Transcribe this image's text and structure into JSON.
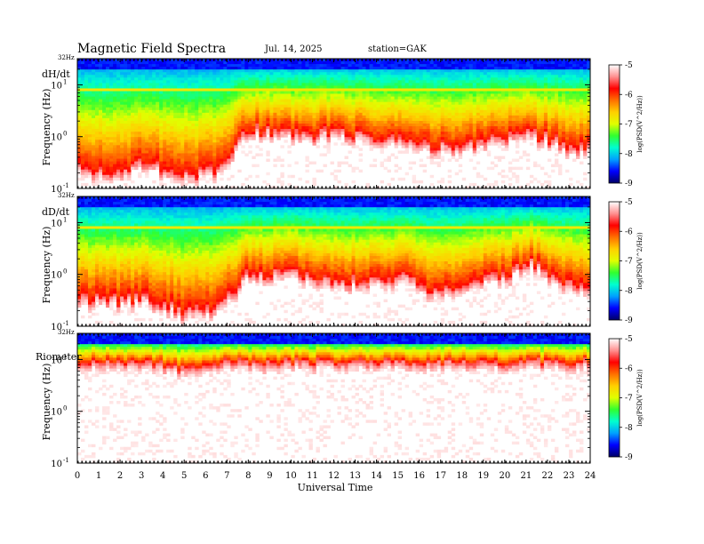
{
  "header": {
    "title": "Magnetic  Field  Spectra",
    "date": "Jul.  14,  2025",
    "station": "station=GAK"
  },
  "chart_data": {
    "type": "heatmap",
    "x_axis": {
      "label": "Universal Time",
      "range": [
        0,
        24
      ],
      "ticks": [
        "0",
        "1",
        "2",
        "3",
        "4",
        "5",
        "6",
        "7",
        "8",
        "9",
        "10",
        "11",
        "12",
        "13",
        "14",
        "15",
        "16",
        "17",
        "18",
        "19",
        "20",
        "21",
        "22",
        "23",
        "24"
      ]
    },
    "y_axis": {
      "label": "Frequency  (Hz)",
      "scale": "log",
      "range": [
        0.1,
        32
      ],
      "top_label": "32Hz",
      "tick_bases": [
        "10",
        "10",
        "10"
      ],
      "tick_exponents": [
        "1",
        "0",
        "-1"
      ]
    },
    "colorbar": {
      "label": "log(PSD(V^2/Hz))",
      "range": [
        -9,
        -5
      ],
      "ticks": [
        "-5",
        "-6",
        "-7",
        "-8",
        "-9"
      ],
      "colors": [
        "#000066",
        "#0000ff",
        "#00a0ff",
        "#00ffd0",
        "#30ff30",
        "#e0ff00",
        "#ffd000",
        "#ff7000",
        "#ff0000",
        "#ff9090",
        "#ffffff"
      ]
    },
    "panels": [
      {
        "name": "dH/dt",
        "floor_log_hz_by_hour": [
          -0.55,
          -0.65,
          -0.6,
          -0.55,
          -0.6,
          -0.7,
          -0.7,
          -0.55,
          0.15,
          0.12,
          0.05,
          0.05,
          0.08,
          0.05,
          -0.05,
          -0.1,
          -0.1,
          -0.2,
          -0.15,
          -0.05,
          -0.05,
          0.15,
          -0.05,
          -0.15,
          -0.2
        ],
        "noise_level": 0.25
      },
      {
        "name": "dD/dt",
        "floor_log_hz_by_hour": [
          -0.45,
          -0.45,
          -0.5,
          -0.45,
          -0.55,
          -0.7,
          -0.7,
          -0.45,
          0.0,
          -0.05,
          0.15,
          -0.05,
          -0.1,
          -0.15,
          -0.05,
          -0.05,
          -0.2,
          -0.3,
          -0.15,
          -0.05,
          -0.05,
          0.25,
          0.05,
          -0.15,
          -0.25
        ],
        "noise_level": 0.25
      },
      {
        "name": "Riometer",
        "floor_log_hz_by_hour": [
          0.95,
          0.95,
          0.95,
          0.95,
          0.9,
          0.8,
          0.9,
          0.95,
          0.95,
          0.95,
          0.95,
          0.95,
          0.95,
          0.95,
          0.95,
          0.95,
          0.95,
          0.95,
          0.95,
          0.95,
          0.95,
          0.95,
          0.95,
          0.95,
          0.95
        ],
        "noise_level": 0.15
      }
    ]
  }
}
